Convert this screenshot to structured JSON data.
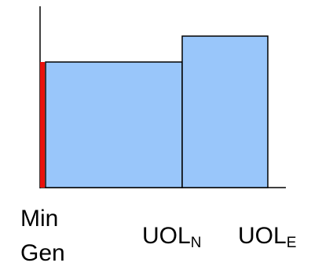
{
  "labels": {
    "min": "Min",
    "gen": "Gen",
    "uol_n_main": "UOL",
    "uol_n_sub": "N",
    "uol_e_main": "UOL",
    "uol_e_sub": "E"
  },
  "colors": {
    "fill": "#99c6fa",
    "outline": "#000000",
    "marker": "#e8110c",
    "axis": "#000000"
  }
}
